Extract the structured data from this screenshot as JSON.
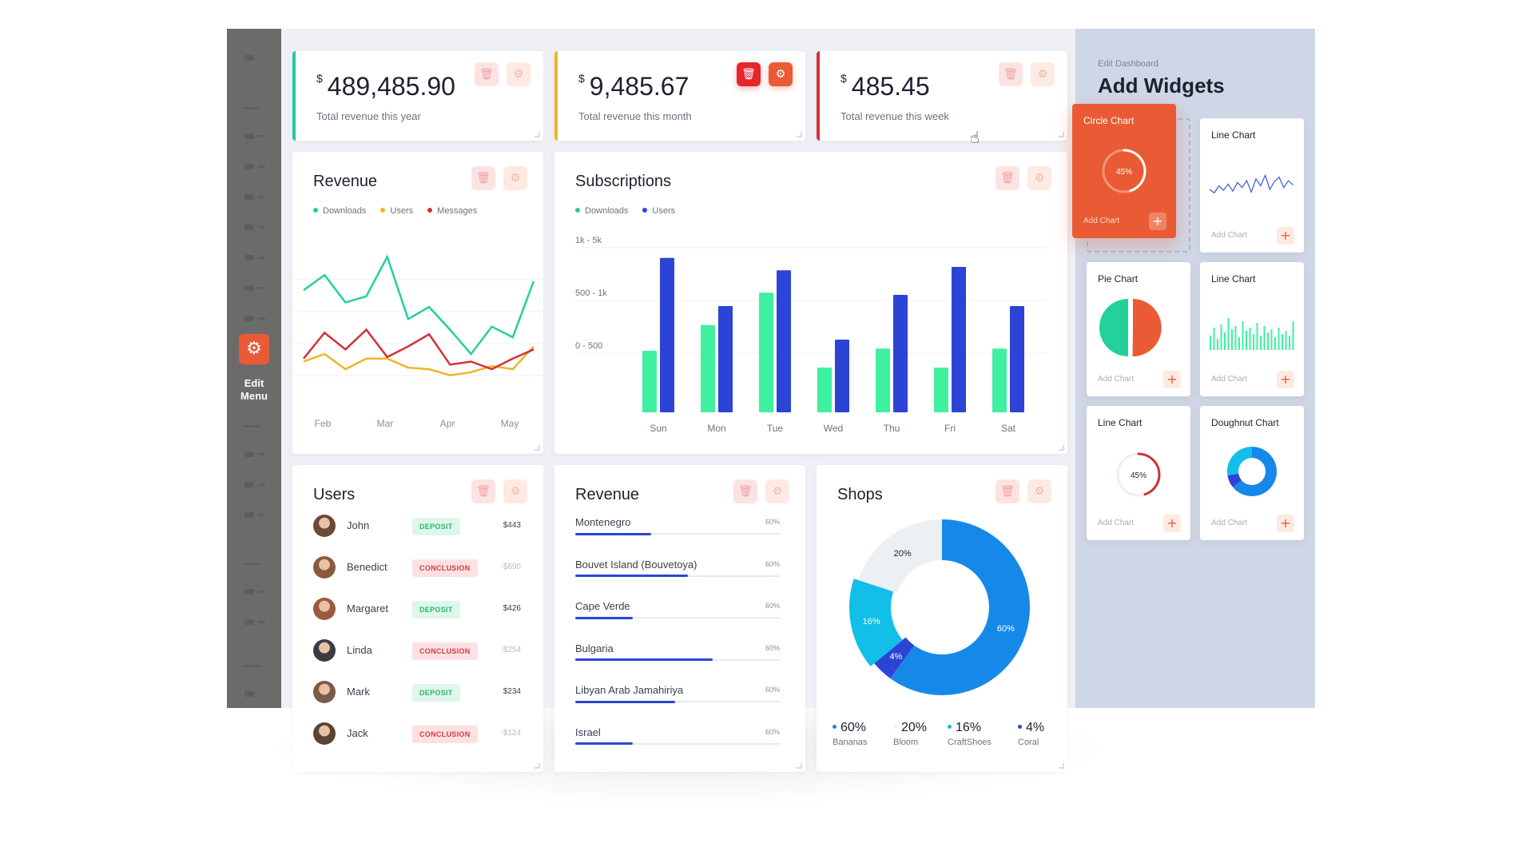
{
  "sidebar": {
    "edit_button_label": "Edit\nMenu"
  },
  "stats": [
    {
      "currency": "$",
      "value": "489,485.90",
      "label": "Total revenue this year",
      "accent": "#23c7a7"
    },
    {
      "currency": "$",
      "value": "9,485.67",
      "label": "Total revenue this month",
      "accent": "#f0b429"
    },
    {
      "currency": "$",
      "value": "485.45",
      "label": "Total revenue this week",
      "accent": "#d62f36"
    }
  ],
  "revenue_chart": {
    "title": "Revenue",
    "legend": [
      {
        "label": "Downloads",
        "color": "#23d19a"
      },
      {
        "label": "Users",
        "color": "#f0b429"
      },
      {
        "label": "Messages",
        "color": "#d62f36"
      }
    ]
  },
  "subscriptions_chart": {
    "title": "Subscriptions",
    "legend": [
      {
        "label": "Downloads",
        "color": "#23d19a"
      },
      {
        "label": "Users",
        "color": "#2b44d6"
      }
    ]
  },
  "chart_data": [
    {
      "type": "line",
      "title": "Revenue",
      "x_ticks": [
        "Feb",
        "Mar",
        "Apr",
        "May"
      ],
      "series": [
        {
          "name": "Downloads",
          "color": "#23d19a",
          "values": [
            72,
            82,
            64,
            68,
            94,
            53,
            61,
            46,
            30,
            48,
            41,
            78
          ]
        },
        {
          "name": "Users",
          "color": "#f0b429",
          "values": [
            25,
            30,
            20,
            27,
            27,
            21,
            20,
            16,
            18,
            22,
            20,
            35
          ]
        },
        {
          "name": "Messages",
          "color": "#d62f36",
          "values": [
            27,
            44,
            33,
            46,
            28,
            35,
            43,
            23,
            25,
            20,
            27,
            33
          ]
        }
      ],
      "ylim": [
        0,
        100
      ]
    },
    {
      "type": "bar",
      "title": "Subscriptions",
      "categories": [
        "Sun",
        "Mon",
        "Tue",
        "Wed",
        "Thu",
        "Fri",
        "Sat"
      ],
      "y_ticks": [
        "1k - 5k",
        "500 - 1k",
        "0 - 500"
      ],
      "series": [
        {
          "name": "Downloads",
          "color": "#3ff0a0",
          "values": [
            55,
            78,
            107,
            40,
            57,
            40,
            57
          ]
        },
        {
          "name": "Users",
          "color": "#2b44d6",
          "values": [
            138,
            95,
            127,
            65,
            105,
            130,
            95
          ]
        }
      ],
      "ylim": [
        0,
        150
      ]
    },
    {
      "type": "pie",
      "title": "Shops",
      "slices": [
        {
          "label": "Bananas",
          "value": 60,
          "display": "60%",
          "color": "#1689e8"
        },
        {
          "label": "Coral",
          "value": 4,
          "display": "4%",
          "color": "#2b44d6"
        },
        {
          "label": "CraftShoes",
          "value": 16,
          "display": "16%",
          "color": "#12bfe8"
        },
        {
          "label": "Bloom",
          "value": 20,
          "display": "20%",
          "color": "#eceff3"
        }
      ]
    }
  ],
  "users_card": {
    "title": "Users",
    "rows": [
      {
        "name": "John",
        "badge": "DEPOSIT",
        "kind": "dep",
        "amount": "$443"
      },
      {
        "name": "Benedict",
        "badge": "CONCLUSION",
        "kind": "con",
        "amount": "-$690"
      },
      {
        "name": "Margaret",
        "badge": "DEPOSIT",
        "kind": "dep",
        "amount": "$426"
      },
      {
        "name": "Linda",
        "badge": "CONCLUSION",
        "kind": "con",
        "amount": "-$254"
      },
      {
        "name": "Mark",
        "badge": "DEPOSIT",
        "kind": "dep",
        "amount": "$234"
      },
      {
        "name": "Jack",
        "badge": "CONCLUSION",
        "kind": "con",
        "amount": "-$124"
      }
    ]
  },
  "revenue_list": {
    "title": "Revenue",
    "rows": [
      {
        "country": "Montenegro",
        "pct": "60%",
        "fill": 0.37
      },
      {
        "country": "Bouvet Island (Bouvetoya)",
        "pct": "60%",
        "fill": 0.55
      },
      {
        "country": "Cape Verde",
        "pct": "60%",
        "fill": 0.28
      },
      {
        "country": "Bulgaria",
        "pct": "60%",
        "fill": 0.67
      },
      {
        "country": "Libyan Arab Jamahiriya",
        "pct": "60%",
        "fill": 0.49
      },
      {
        "country": "Israel",
        "pct": "60%",
        "fill": 0.28
      }
    ]
  },
  "shops": {
    "title": "Shops",
    "legend": [
      {
        "value": "60%",
        "name": "Bananas",
        "color": "#1689e8"
      },
      {
        "value": "20%",
        "name": "Bloom",
        "color": "#eceff3"
      },
      {
        "value": "16%",
        "name": "CraftShoes",
        "color": "#12bfe8"
      },
      {
        "value": "4%",
        "name": "Coral",
        "color": "#2b44d6"
      }
    ]
  },
  "widgets_panel": {
    "subtitle": "Edit Dashboard",
    "title": "Add Widgets",
    "add_label": "Add Chart",
    "widgets": [
      {
        "title": "Circle Chart",
        "kind": "ring",
        "percent_label": "45%",
        "percent": 0.45
      },
      {
        "title": "Line Chart",
        "kind": "sparkline"
      },
      {
        "title": "Pie Chart",
        "kind": "pie"
      },
      {
        "title": "Line Chart",
        "kind": "barcode"
      },
      {
        "title": "Line Chart",
        "kind": "ring-red",
        "percent_label": "45%",
        "percent": 0.45
      },
      {
        "title": "Doughnut Chart",
        "kind": "doughnut"
      }
    ]
  }
}
